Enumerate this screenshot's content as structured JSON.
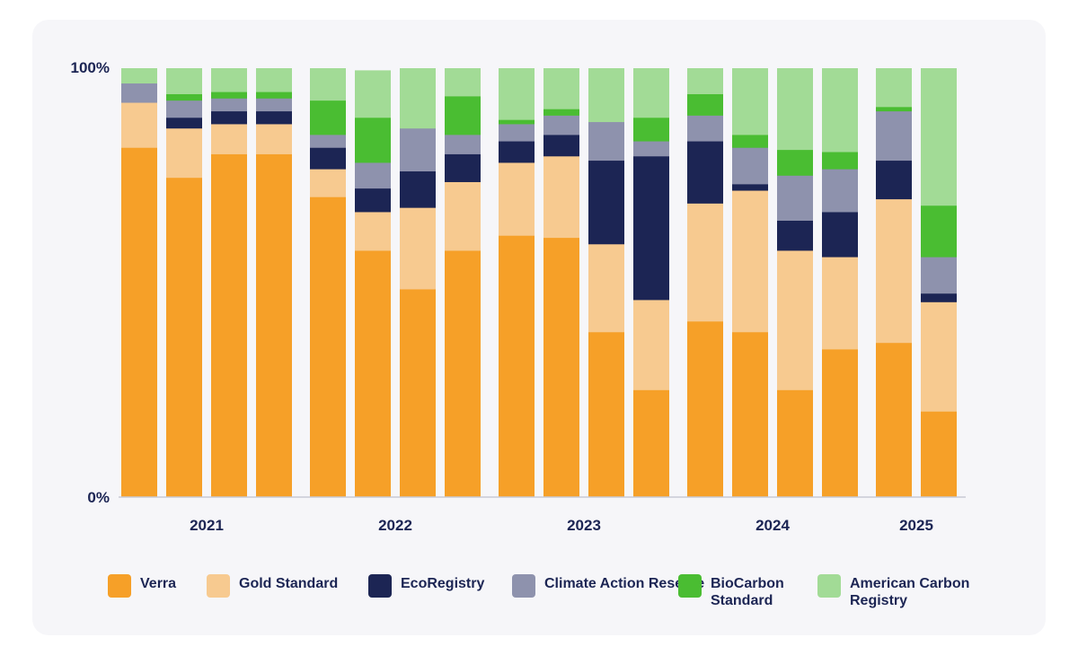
{
  "chart_data": {
    "type": "stacked-bar-100",
    "title": "",
    "y_tick_labels": [
      "100%",
      "0%"
    ],
    "ylim": [
      0,
      100
    ],
    "groups": [
      {
        "label": "2021",
        "bar_count": 4
      },
      {
        "label": "2022",
        "bar_count": 4
      },
      {
        "label": "2023",
        "bar_count": 4
      },
      {
        "label": "2024",
        "bar_count": 4
      },
      {
        "label": "2025",
        "bar_count": 2
      }
    ],
    "series": [
      {
        "name": "Verra",
        "color": "#f6a028",
        "values": [
          81.5,
          74.5,
          80,
          80,
          70,
          57.5,
          48.5,
          57.5,
          61,
          60.5,
          38.5,
          25,
          41,
          38.5,
          25,
          34.5,
          36,
          20
        ]
      },
      {
        "name": "Gold Standard",
        "color": "#f7ca90",
        "values": [
          10.5,
          11.5,
          7,
          7,
          6.5,
          9,
          19,
          16,
          17,
          19,
          20.5,
          21,
          27.5,
          33,
          32.5,
          21.5,
          33.5,
          25.5
        ]
      },
      {
        "name": "EcoRegistry",
        "color": "#1c2554",
        "values": [
          0,
          2.5,
          3,
          3,
          5,
          5.5,
          8.5,
          6.5,
          5,
          5,
          19.5,
          33.5,
          14.5,
          1.5,
          7,
          10.5,
          9,
          2
        ]
      },
      {
        "name": "Climate Action Reserve",
        "color": "#8e92ad",
        "values": [
          4.5,
          4,
          3,
          3,
          3,
          6,
          10,
          4.5,
          4,
          4.5,
          9,
          3.5,
          6,
          8.5,
          10.5,
          10,
          11.5,
          8.5
        ]
      },
      {
        "name": "BioCarbon\nStandard",
        "color": "#4abd32",
        "values": [
          0,
          1.5,
          1.5,
          1.5,
          8,
          10.5,
          0,
          9,
          1,
          1.5,
          0,
          5.5,
          5,
          3,
          6,
          4,
          1,
          12
        ]
      },
      {
        "name": "American Carbon\nRegistry",
        "color": "#a2db96",
        "values": [
          3.5,
          6,
          5.5,
          5.5,
          7.5,
          11,
          14,
          6.5,
          12,
          9.5,
          12.5,
          11.5,
          6,
          15.5,
          19,
          19.5,
          9,
          32
        ]
      }
    ],
    "colors": {
      "axis": "#c9cad6",
      "text": "#1c2554",
      "card": "#f6f6f9"
    }
  }
}
